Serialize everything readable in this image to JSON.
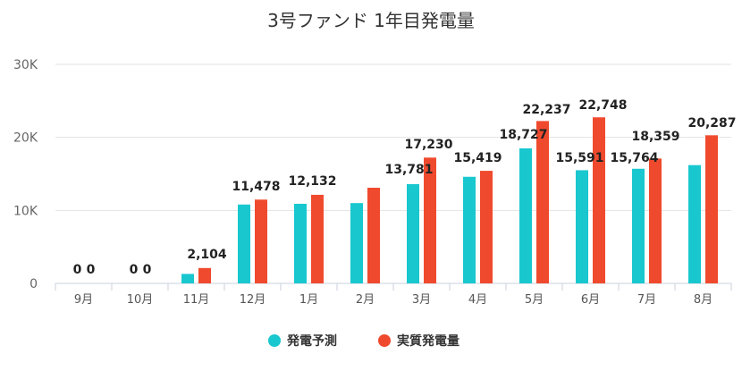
{
  "chart_data": {
    "type": "bar",
    "title": "3号ファンド 1年目発電量",
    "categories": [
      "9月",
      "10月",
      "11月",
      "12月",
      "1月",
      "2月",
      "3月",
      "4月",
      "5月",
      "6月",
      "7月",
      "8月"
    ],
    "series": [
      {
        "name": "発電予測",
        "color": "#19c7cf",
        "values": [
          0,
          0,
          1300,
          10800,
          10900,
          11000,
          13600,
          14600,
          18500,
          15500,
          15700,
          16200
        ],
        "labels": [
          "0",
          "0",
          "",
          "",
          "",
          "",
          "",
          "",
          "",
          "",
          "",
          ""
        ]
      },
      {
        "name": "実質発電量",
        "color": "#f04a2e",
        "values": [
          0,
          0,
          2104,
          11478,
          12132,
          13100,
          17230,
          15419,
          22237,
          22748,
          17100,
          20287
        ],
        "labels": [
          "0",
          "0",
          "2,104",
          "11,478",
          "12,132",
          "",
          "17,230",
          "15,419",
          "22,237",
          "22,748",
          "",
          "20,287"
        ]
      }
    ],
    "extra_labels": [
      "13,781",
      "18,727",
      "15,591",
      "15,764",
      "18,359"
    ],
    "ylim": [
      0,
      30000
    ],
    "yticks": [
      0,
      10000,
      20000,
      30000
    ],
    "ytick_labels": [
      "0",
      "10K",
      "20K",
      "30K"
    ],
    "grid": true,
    "legend_position": "bottom-center"
  }
}
